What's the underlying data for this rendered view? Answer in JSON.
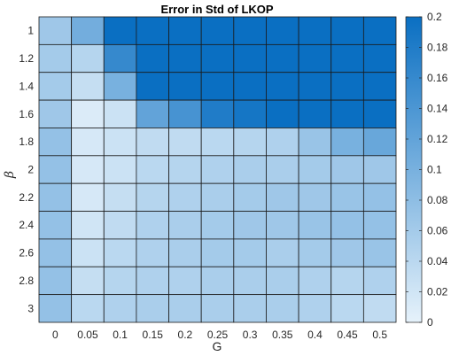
{
  "chart_data": {
    "type": "heatmap",
    "title": "Error in Std of LKOP",
    "xlabel": "G",
    "ylabel": "β",
    "x_categories": [
      "0",
      "0.05",
      "0.1",
      "0.15",
      "0.2",
      "0.25",
      "0.3",
      "0.35",
      "0.4",
      "0.45",
      "0.5"
    ],
    "y_categories": [
      "1",
      "1.2",
      "1.4",
      "1.6",
      "1.8",
      "2",
      "2.2",
      "2.4",
      "2.6",
      "2.8",
      "3"
    ],
    "values": [
      [
        0.065,
        0.105,
        0.2,
        0.2,
        0.2,
        0.2,
        0.2,
        0.2,
        0.2,
        0.2,
        0.2
      ],
      [
        0.06,
        0.045,
        0.16,
        0.2,
        0.2,
        0.2,
        0.2,
        0.2,
        0.2,
        0.2,
        0.2
      ],
      [
        0.06,
        0.03,
        0.1,
        0.2,
        0.2,
        0.2,
        0.2,
        0.2,
        0.2,
        0.2,
        0.2
      ],
      [
        0.065,
        0.01,
        0.025,
        0.12,
        0.145,
        0.18,
        0.19,
        0.2,
        0.2,
        0.2,
        0.2
      ],
      [
        0.075,
        0.015,
        0.025,
        0.035,
        0.035,
        0.04,
        0.045,
        0.05,
        0.07,
        0.1,
        0.115
      ],
      [
        0.075,
        0.015,
        0.025,
        0.04,
        0.045,
        0.05,
        0.055,
        0.055,
        0.06,
        0.065,
        0.065
      ],
      [
        0.075,
        0.015,
        0.03,
        0.045,
        0.05,
        0.055,
        0.06,
        0.065,
        0.065,
        0.07,
        0.075
      ],
      [
        0.075,
        0.02,
        0.035,
        0.05,
        0.055,
        0.06,
        0.065,
        0.065,
        0.07,
        0.075,
        0.075
      ],
      [
        0.075,
        0.025,
        0.04,
        0.05,
        0.055,
        0.06,
        0.06,
        0.055,
        0.06,
        0.065,
        0.07
      ],
      [
        0.075,
        0.03,
        0.045,
        0.05,
        0.05,
        0.055,
        0.055,
        0.055,
        0.05,
        0.045,
        0.05
      ],
      [
        0.075,
        0.04,
        0.05,
        0.055,
        0.055,
        0.055,
        0.055,
        0.055,
        0.05,
        0.04,
        0.035
      ]
    ],
    "colorbar": {
      "min": 0,
      "max": 0.2,
      "ticks": [
        "0",
        "0.02",
        "0.04",
        "0.06",
        "0.08",
        "0.1",
        "0.12",
        "0.14",
        "0.16",
        "0.18",
        "0.2"
      ],
      "color_low": "#e6f2fb",
      "color_high": "#0a6fc2"
    },
    "grid": true,
    "legend": "colorbar-right"
  }
}
